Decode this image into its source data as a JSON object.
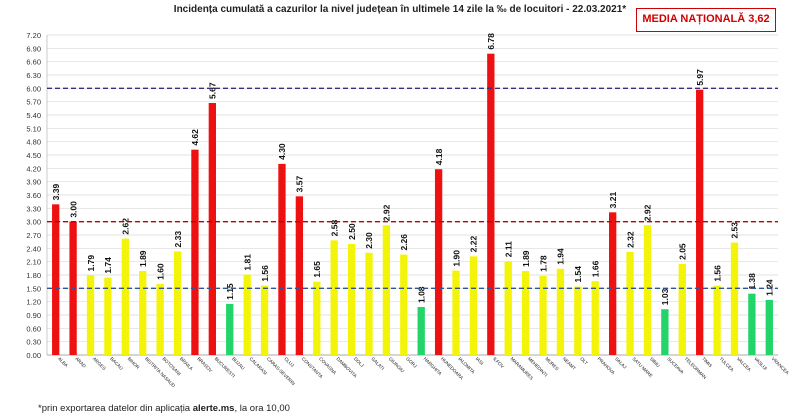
{
  "chart_data": {
    "type": "bar",
    "title": "Incidența cumulată a cazurilor la nivel județean în ultimele 14 zile la ‰ de locuitori - 22.03.2021*",
    "categories": [
      "ALBA",
      "ARAD",
      "ARGES",
      "BACAU",
      "BIHOR",
      "BISTRITA NASAUD",
      "BOTOSANI",
      "BRAILA",
      "BRASOV",
      "BUCURESTI",
      "BUZAU",
      "CALARASI",
      "CARAS-SEVERIN",
      "CLUJ",
      "CONSTANTA",
      "COVASNA",
      "DAMBOVITA",
      "DOLJ",
      "GALATI",
      "GIURGIU",
      "GORJ",
      "HARGHITA",
      "HUNEDOARA",
      "IALOMITA",
      "IASI",
      "ILFOV",
      "MARAMURES",
      "MEHEDINTI",
      "MURES",
      "NEAMT",
      "OLT",
      "PRAHOVA",
      "SALAJ",
      "SATU MARE",
      "SIBIU",
      "SUCEAVA",
      "TELEORMAN",
      "TIMIS",
      "TULCEA",
      "VALCEA",
      "VASLUI",
      "VRANCEA"
    ],
    "values": [
      3.39,
      3.0,
      1.79,
      1.74,
      2.62,
      1.89,
      1.6,
      2.33,
      4.62,
      5.67,
      1.15,
      1.81,
      1.56,
      4.3,
      3.57,
      1.65,
      2.58,
      2.5,
      2.3,
      2.92,
      2.26,
      1.08,
      4.18,
      1.9,
      2.22,
      6.78,
      2.11,
      1.89,
      1.78,
      1.94,
      1.54,
      1.66,
      3.21,
      2.32,
      2.92,
      1.03,
      2.05,
      5.97,
      1.56,
      2.53,
      1.38,
      1.24
    ],
    "value_labels": [
      "3.39",
      "3.00",
      "1.79",
      "1.74",
      "2.62",
      "1.89",
      "1.60",
      "2.33",
      "4.62",
      "5.67",
      "1.15",
      "1.81",
      "1.56",
      "4.30",
      "3.57",
      "1.65",
      "2.58",
      "2.50",
      "2.30",
      "2.92",
      "2.26",
      "1.08",
      "4.18",
      "1.90",
      "2.22",
      "6.78",
      "2.11",
      "1.89",
      "1.78",
      "1.94",
      "1.54",
      "1.66",
      "3.21",
      "2.32",
      "2.92",
      "1.03",
      "2.05",
      "5.97",
      "1.56",
      "2.53",
      "1.38",
      "1.24"
    ],
    "ylim": [
      0,
      7.2
    ],
    "ytick_step": 0.3,
    "ytick_labels": [
      "0.00",
      "0.30",
      "0.60",
      "0.90",
      "1.20",
      "1.50",
      "1.80",
      "2.10",
      "2.40",
      "2.70",
      "3.00",
      "3.30",
      "3.60",
      "3.90",
      "4.20",
      "4.50",
      "4.80",
      "5.10",
      "5.40",
      "5.70",
      "6.00",
      "6.30",
      "6.60",
      "6.90",
      "7.20"
    ],
    "thresholds": [
      {
        "value": 1.5,
        "color": "#2f5597"
      },
      {
        "value": 3.0,
        "color": "#c00000"
      },
      {
        "value": 6.0,
        "color": "#3a2d80"
      }
    ],
    "bar_color_rules": [
      {
        "max": 1.5,
        "color": "#22d46a"
      },
      {
        "max": 3.0,
        "color": "#f4f40a"
      },
      {
        "max": 99,
        "color": "#ee1111"
      }
    ],
    "grid": true
  },
  "national_average_label": "MEDIA NAȚIONALĂ 3,62",
  "footnote": {
    "prefix": "*prin exportarea datelor din aplicația ",
    "bold": "alerte.ms",
    "suffix": ", la ora 10,00"
  }
}
